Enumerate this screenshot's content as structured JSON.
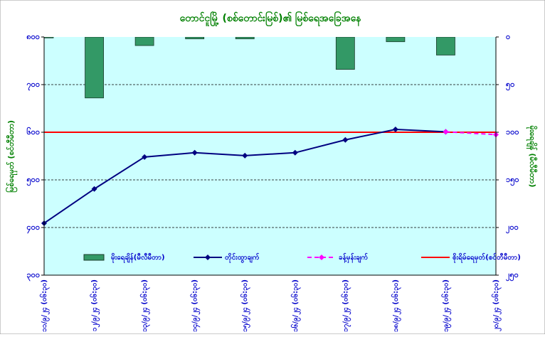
{
  "chart_data": {
    "type": "combo",
    "title": "တောင်ငူမြို့ (စစ်တောင်းမြစ်)၏ မြစ်ရေအခြေအနေ",
    "y_label": "မြစ်ရေမှတ် (စင်တီမီတာ)",
    "y2_label": "မိုးရေချိန် (မီလီမီတာ)",
    "categories": [
      "၁၁/၉/၂၄ (၀၆:၃၀)",
      "၁၂/၉/၂၄ (၀၆:၃၀)",
      "၁၃/၉/၂၄ (၀၆:၃၀)",
      "၁၄/၉/၂၄ (၀၆:၃၀)",
      "၁၅/၉/၂၄ (၀၆:၃၀)",
      "၁၆/၉/၂၄ (၀၆:၃၀)",
      "၁၇/၉/၂၄ (၀၆:၃၀)",
      "၁၈/၉/၂၄ (၀၆:၃၀)",
      "၁၉/၉/၂၄ (၀၆:၃၀)",
      "၂၀/၉/၂၄ (၀၆:၃၀)"
    ],
    "series": [
      {
        "name": "မိုးရေချိန်(မီလီမီတာ)",
        "kind": "bar",
        "axis": "y2",
        "color": "#339966",
        "values": [
          1,
          64,
          9,
          2,
          2,
          0,
          34,
          5,
          19,
          0
        ]
      },
      {
        "name": "တိုင်းထွာချက်",
        "kind": "line",
        "color": "#000080",
        "values": [
          409,
          481,
          548,
          557,
          551,
          557,
          584,
          606,
          601,
          null
        ]
      },
      {
        "name": "ခန့်မှန်းချက်",
        "kind": "dashed",
        "color": "#ff00ff",
        "values": [
          null,
          null,
          null,
          null,
          null,
          null,
          null,
          null,
          601,
          595
        ]
      }
    ],
    "danger": {
      "name": "စိုးရိမ်ရေမှတ်(စင်တီမီတာ)",
      "value": 600,
      "color": "#ff0000"
    },
    "ylim": [
      300,
      800
    ],
    "yticks": [
      {
        "value": 800,
        "label": "၈၀၀"
      },
      {
        "value": 700,
        "label": "၇၀၀"
      },
      {
        "value": 600,
        "label": "၆၀၀"
      },
      {
        "value": 500,
        "label": "၅၀၀"
      },
      {
        "value": 400,
        "label": "၄၀၀"
      },
      {
        "value": 300,
        "label": "၃၀၀"
      }
    ],
    "y2lim": [
      0,
      250
    ],
    "y2ticks": [
      {
        "value": 0,
        "label": "၀"
      },
      {
        "value": 50,
        "label": "၅၀"
      },
      {
        "value": 100,
        "label": "၁၀၀"
      },
      {
        "value": 150,
        "label": "၁၅၀"
      },
      {
        "value": 200,
        "label": "၂၀၀"
      },
      {
        "value": 250,
        "label": "၂၅၀"
      }
    ],
    "y2_inverted": true,
    "grid": true,
    "legend": "bottom"
  }
}
